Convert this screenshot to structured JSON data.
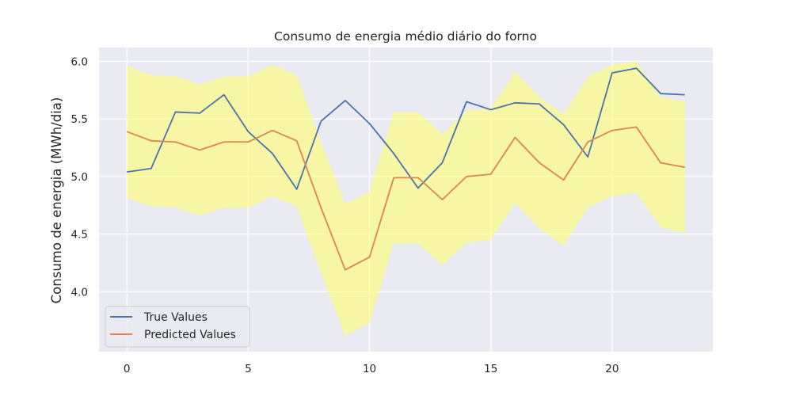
{
  "chart_data": {
    "type": "line",
    "title": "Consumo de energia médio diário do forno",
    "xlabel": "",
    "ylabel": "Consumo de energia (MWh/dia)",
    "xlim": [
      -1.15,
      24.15
    ],
    "ylim": [
      3.48,
      6.12
    ],
    "xticks": [
      0,
      5,
      10,
      15,
      20
    ],
    "yticks": [
      4.0,
      4.5,
      5.0,
      5.5,
      6.0
    ],
    "x": [
      0,
      1,
      2,
      3,
      4,
      5,
      6,
      7,
      8,
      9,
      10,
      11,
      12,
      13,
      14,
      15,
      16,
      17,
      18,
      19,
      20,
      21,
      22,
      23
    ],
    "series": [
      {
        "name": "True Values",
        "color": "#4c72b0",
        "values": [
          5.04,
          5.07,
          5.56,
          5.55,
          5.71,
          5.39,
          5.2,
          4.89,
          5.48,
          5.66,
          5.46,
          5.2,
          4.9,
          5.12,
          5.65,
          5.58,
          5.64,
          5.63,
          5.45,
          5.17,
          5.9,
          5.94,
          5.72,
          5.71
        ]
      },
      {
        "name": "Predicted Values",
        "color": "#dd8452",
        "values": [
          5.39,
          5.31,
          5.3,
          5.23,
          5.3,
          5.3,
          5.4,
          5.31,
          4.73,
          4.19,
          4.3,
          4.99,
          4.99,
          4.8,
          5.0,
          5.02,
          5.34,
          5.12,
          4.97,
          5.3,
          5.4,
          5.43,
          5.12,
          5.08
        ]
      }
    ],
    "band": {
      "color": "#ffff66",
      "upper": [
        5.96,
        5.88,
        5.87,
        5.8,
        5.87,
        5.87,
        5.97,
        5.88,
        5.3,
        4.76,
        4.87,
        5.56,
        5.56,
        5.37,
        5.57,
        5.59,
        5.91,
        5.69,
        5.54,
        5.87,
        5.97,
        6.0,
        5.69,
        5.65
      ],
      "lower": [
        4.82,
        4.74,
        4.73,
        4.66,
        4.73,
        4.73,
        4.83,
        4.74,
        4.16,
        3.62,
        3.73,
        4.42,
        4.42,
        4.23,
        4.43,
        4.45,
        4.77,
        4.55,
        4.4,
        4.73,
        4.83,
        4.86,
        4.56,
        4.51
      ]
    },
    "background": "#eaeaf2",
    "grid": true,
    "legend_position": "lower-left"
  }
}
